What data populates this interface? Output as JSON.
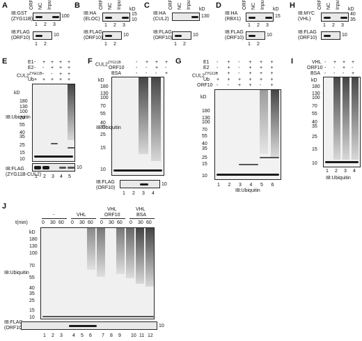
{
  "panels": {
    "A": {
      "letter": "A",
      "ib1_a": "IB:GST",
      "ib1_b": "(ZYG11B)",
      "ib2_a": "IB:FLAG",
      "ib2_b": "(ORF10)",
      "cols": [
        "ORF10",
        "NC",
        "Input"
      ],
      "lanes": [
        "1",
        "2",
        "3"
      ],
      "lanes2": [
        "1",
        "2"
      ],
      "kd1": "100",
      "kd2": "10"
    },
    "B": {
      "letter": "B",
      "ib1_a": "IB:HA",
      "ib1_b": "(ELOC)",
      "ib2_a": "IB:FLAG",
      "ib2_b": "(ORF10)",
      "cols": [
        "ORF10",
        "NC",
        "Input"
      ],
      "lanes": [
        "1",
        "2",
        "3"
      ],
      "lanes2": [
        "1",
        "2"
      ],
      "kd_label": "kD",
      "kd1": "15",
      "kd1b": "10",
      "kd2": "10"
    },
    "C": {
      "letter": "C",
      "ib1_a": "IB:HA",
      "ib1_b": "(CUL2)",
      "ib2_a": "IB:FLAG",
      "ib2_b": "(ORF10)",
      "cols": [
        "ORF10",
        "NC",
        "Input"
      ],
      "lanes": [
        "1",
        "2",
        "3"
      ],
      "lanes2": [
        "1",
        "2"
      ],
      "kd_label": "kD",
      "kd1": "130",
      "kd2": "10"
    },
    "D": {
      "letter": "D",
      "ib1_a": "IB:HA",
      "ib1_b": "(RBX1)",
      "ib2_a": "IB:FLAG",
      "ib2_b": "(ORF10)",
      "cols": [
        "ORF10",
        "NC",
        "Input"
      ],
      "lanes": [
        "1",
        "2",
        "3"
      ],
      "lanes2": [
        "1",
        "2"
      ],
      "kd_label": "kD",
      "kd1": "15",
      "kd2": "10"
    },
    "H": {
      "letter": "H",
      "ib1_a": "IB:MYC",
      "ib1_b": "(VHL)",
      "ib2_a": "IB:FLAG",
      "ib2_b": "(ORF10)",
      "cols": [
        "ORF10",
        "NC",
        "Input"
      ],
      "lanes": [
        "1",
        "2",
        "3"
      ],
      "lanes2": [
        "1",
        "2"
      ],
      "kd_label": "kD",
      "kd1": "40",
      "kd1b": "35",
      "kd2": "10"
    },
    "E": {
      "letter": "E",
      "rows": [
        "E1",
        "E2",
        "CUL2",
        "Ub"
      ],
      "sup": "ZYG11B",
      "signs": [
        [
          "-",
          "+",
          "+",
          "+",
          "+"
        ],
        [
          "-",
          "-",
          "+",
          "+",
          "+"
        ],
        [
          "-",
          "-",
          "-",
          "+",
          "+"
        ],
        [
          "+",
          "+",
          "+",
          "+",
          "+"
        ]
      ],
      "kd": "kD",
      "markers": [
        "180",
        "130",
        "100",
        "70",
        "55",
        "40",
        "35",
        "25",
        "15",
        "10"
      ],
      "ib1": "IB:Ubiquitin",
      "ib2_a": "IB:FLAG",
      "ib2_b": "(ZYG11B-CUL2)",
      "kd2": "10",
      "lanes": [
        "1",
        "2",
        "3",
        "4",
        "5"
      ]
    },
    "F": {
      "letter": "F",
      "rows": [
        "CUL2",
        "ORF10",
        "BSA"
      ],
      "sup": "ZYG11B",
      "signs": [
        [
          "-",
          "+",
          "+",
          "+"
        ],
        [
          "-",
          "-",
          "+",
          "-"
        ],
        [
          "-",
          "-",
          "-",
          "+"
        ]
      ],
      "kd": "kD",
      "markers": [
        "180",
        "130",
        "100",
        "70",
        "55",
        "40",
        "35",
        "25",
        "15",
        "10"
      ],
      "ib1": "IB:Ubiquitin",
      "ib2_a": "IB:FLAG",
      "ib2_b": "(ORF10)",
      "kd2": "10",
      "lanes": [
        "1",
        "2",
        "3",
        "4"
      ]
    },
    "G": {
      "letter": "G",
      "rows": [
        "E1",
        "E2",
        "CUL2",
        "Ub",
        "ORF10"
      ],
      "sup": "ZYG11B",
      "signs": [
        [
          "-",
          "+",
          "-",
          "+",
          "+",
          "+"
        ],
        [
          "-",
          "+",
          "-",
          "+",
          "+",
          "+"
        ],
        [
          "-",
          "+",
          "-",
          "+",
          "+",
          "+"
        ],
        [
          "+",
          "+",
          "+",
          "+",
          "+",
          "+"
        ],
        [
          "-",
          "-",
          "+",
          "+",
          "-",
          "+"
        ]
      ],
      "kd": "kD",
      "markers": [
        "180",
        "130",
        "100",
        "70",
        "55",
        "40",
        "35",
        "25",
        "15",
        "10"
      ],
      "ib": "IB:Ubiquitin",
      "lanes": [
        "1",
        "2",
        "3",
        "4",
        "5",
        "6"
      ]
    },
    "I": {
      "letter": "I",
      "rows": [
        "VHL",
        "ORF10",
        "BSA"
      ],
      "signs": [
        [
          "-",
          "+",
          "+",
          "+"
        ],
        [
          "-",
          "-",
          "+",
          "-"
        ],
        [
          "-",
          "-",
          "-",
          "+"
        ]
      ],
      "kd": "kD",
      "markers": [
        "180",
        "130",
        "100",
        "70",
        "55",
        "40",
        "35",
        "25",
        "15",
        "10"
      ],
      "ib": "IB:Ubiquitin",
      "lanes": [
        "1",
        "2",
        "3",
        "4"
      ]
    },
    "J": {
      "letter": "J",
      "groups": [
        "-",
        "VHL",
        "VHL\nORF10",
        "VHL\nBSA"
      ],
      "group_l1": [
        "-",
        "VHL",
        "VHL",
        "VHL"
      ],
      "group_l2": [
        "",
        "",
        "ORF10",
        "BSA"
      ],
      "tmin": "t(min)",
      "times": [
        "0",
        "30",
        "60",
        "0",
        "30",
        "60",
        "0",
        "30",
        "60",
        "0",
        "30",
        "60"
      ],
      "kd": "kD",
      "markers": [
        "180",
        "130",
        "100",
        "70",
        "55",
        "40",
        "35",
        "25",
        "15",
        "10"
      ],
      "ib1": "IB:Ubiquitin",
      "ib2_a": "IB:FLAG",
      "ib2_b": "(ORF10)",
      "kd2": "10",
      "lanes": [
        "1",
        "2",
        "3",
        "4",
        "5",
        "6",
        "7",
        "8",
        "9",
        "10",
        "11",
        "12"
      ]
    }
  }
}
